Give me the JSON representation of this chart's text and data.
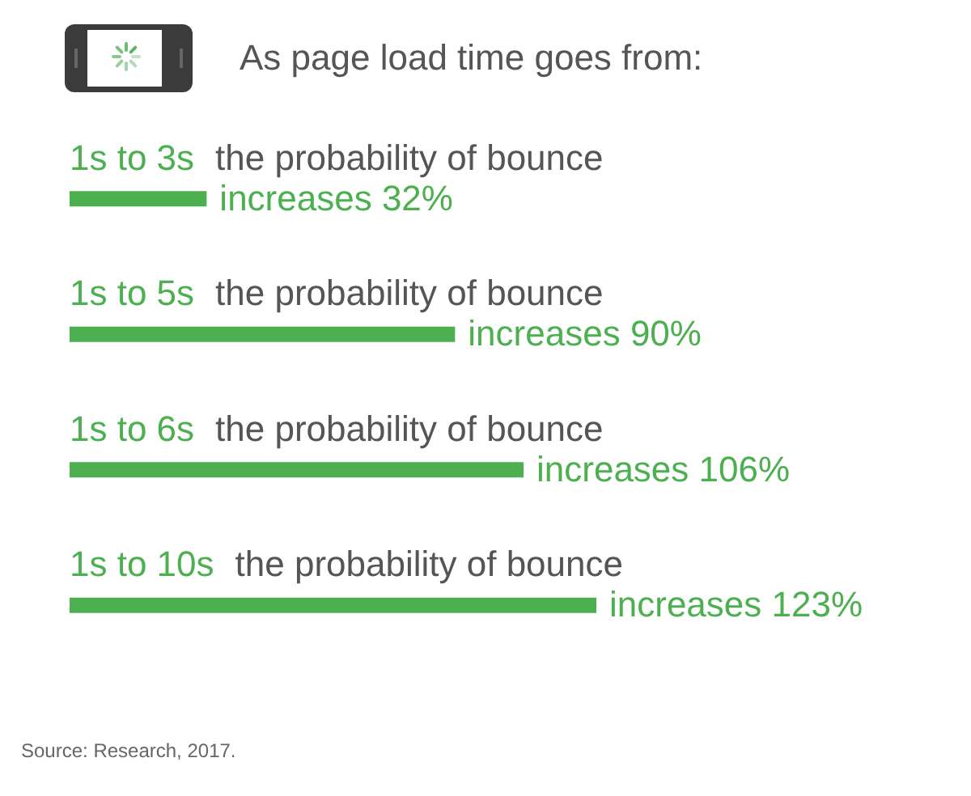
{
  "chart_data": {
    "type": "bar",
    "orientation": "horizontal",
    "title": "As page load time goes from:",
    "categories": [
      "1s to 3s",
      "1s to 5s",
      "1s to 6s",
      "1s to 10s"
    ],
    "values": [
      32,
      90,
      106,
      123
    ],
    "color": "#4caf50",
    "value_labels": [
      "increases 32%",
      "increases 90%",
      "increases 106%",
      "increases 123%"
    ],
    "annotations": [
      "the probability of bounce",
      "the probability of bounce",
      "the probability of bounce",
      "the probability of bounce",
      "Source: Research, 2017."
    ],
    "tick_labels": "y"
  }
}
